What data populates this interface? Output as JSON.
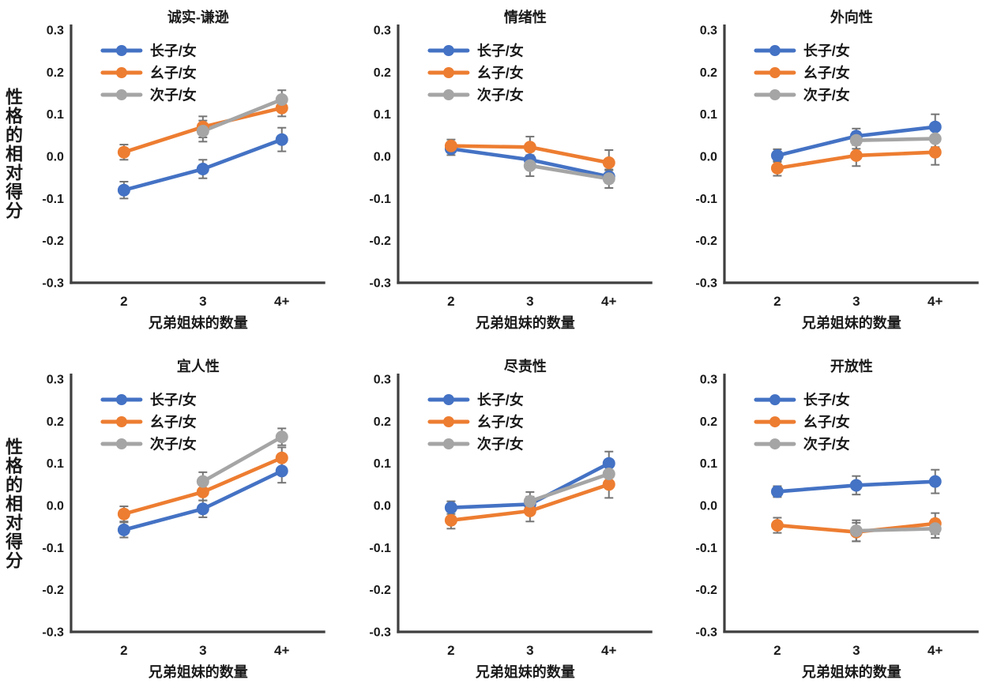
{
  "figure": {
    "background": "#ffffff",
    "y_axis_label": "性格的相对得分",
    "x_axis_label": "兄弟姐妹的数量",
    "y_ticks": [
      "0.3",
      "0.2",
      "0.1",
      "0.0",
      "-0.1",
      "-0.2",
      "-0.3"
    ],
    "ylim": [
      -0.3,
      0.3
    ],
    "legend": [
      "长子/女",
      "幺子/女",
      "次子/女"
    ],
    "colors": {
      "firstborn_blue": "#4472C4",
      "lastborn_orange": "#ED7D31",
      "middleborn_gray": "#A5A5A5",
      "error_bar": "#757575",
      "axis": "#3F3F3F",
      "text": "#1a1a1a"
    }
  },
  "chart_data": [
    {
      "type": "line",
      "title": "诚实-谦逊",
      "categories": [
        "2",
        "3",
        "4+"
      ],
      "xlabel": "兄弟姐妹的数量",
      "ylabel": "性格的相对得分",
      "ylim": [
        -0.3,
        0.3
      ],
      "grid": false,
      "legend_position": "top-left-inside",
      "series": [
        {
          "name": "长子/女",
          "color": "#4472C4",
          "values": [
            -0.08,
            -0.03,
            0.04
          ],
          "errors": [
            0.02,
            0.022,
            0.028
          ]
        },
        {
          "name": "幺子/女",
          "color": "#ED7D31",
          "values": [
            0.01,
            0.07,
            0.115
          ],
          "errors": [
            0.018,
            0.025,
            0.02
          ]
        },
        {
          "name": "次子/女",
          "color": "#A5A5A5",
          "values": [
            null,
            0.06,
            0.135
          ],
          "errors": [
            null,
            0.025,
            0.022
          ]
        }
      ]
    },
    {
      "type": "line",
      "title": "情绪性",
      "categories": [
        "2",
        "3",
        "4+"
      ],
      "xlabel": "兄弟姐妹的数量",
      "ylabel": "性格的相对得分",
      "ylim": [
        -0.3,
        0.3
      ],
      "grid": false,
      "legend_position": "top-left-inside",
      "series": [
        {
          "name": "长子/女",
          "color": "#4472C4",
          "values": [
            0.018,
            -0.008,
            -0.048
          ],
          "errors": [
            0.015,
            0.02,
            0.015
          ]
        },
        {
          "name": "幺子/女",
          "color": "#ED7D31",
          "values": [
            0.025,
            0.022,
            -0.015
          ],
          "errors": [
            0.015,
            0.025,
            0.03
          ]
        },
        {
          "name": "次子/女",
          "color": "#A5A5A5",
          "values": [
            null,
            -0.022,
            -0.053
          ],
          "errors": [
            null,
            0.025,
            0.022
          ]
        }
      ]
    },
    {
      "type": "line",
      "title": "外向性",
      "categories": [
        "2",
        "3",
        "4+"
      ],
      "xlabel": "兄弟姐妹的数量",
      "ylabel": "性格的相对得分",
      "ylim": [
        -0.3,
        0.3
      ],
      "grid": false,
      "legend_position": "top-left-inside",
      "series": [
        {
          "name": "长子/女",
          "color": "#4472C4",
          "values": [
            0.002,
            0.048,
            0.07
          ],
          "errors": [
            0.015,
            0.018,
            0.03
          ]
        },
        {
          "name": "幺子/女",
          "color": "#ED7D31",
          "values": [
            -0.028,
            0.002,
            0.01
          ],
          "errors": [
            0.018,
            0.025,
            0.03
          ]
        },
        {
          "name": "次子/女",
          "color": "#A5A5A5",
          "values": [
            null,
            0.038,
            0.042
          ],
          "errors": [
            null,
            0.02,
            0.02
          ]
        }
      ]
    },
    {
      "type": "line",
      "title": "宜人性",
      "categories": [
        "2",
        "3",
        "4+"
      ],
      "xlabel": "兄弟姐妹的数量",
      "ylabel": "性格的相对得分",
      "ylim": [
        -0.3,
        0.3
      ],
      "grid": false,
      "legend_position": "top-left-inside",
      "series": [
        {
          "name": "长子/女",
          "color": "#4472C4",
          "values": [
            -0.058,
            -0.008,
            0.082
          ],
          "errors": [
            0.018,
            0.02,
            0.028
          ]
        },
        {
          "name": "幺子/女",
          "color": "#ED7D31",
          "values": [
            -0.02,
            0.032,
            0.113
          ],
          "errors": [
            0.018,
            0.02,
            0.025
          ]
        },
        {
          "name": "次子/女",
          "color": "#A5A5A5",
          "values": [
            null,
            0.057,
            0.163
          ],
          "errors": [
            null,
            0.022,
            0.02
          ]
        }
      ]
    },
    {
      "type": "line",
      "title": "尽责性",
      "categories": [
        "2",
        "3",
        "4+"
      ],
      "xlabel": "兄弟姐妹的数量",
      "ylabel": "性格的相对得分",
      "ylim": [
        -0.3,
        0.3
      ],
      "grid": false,
      "legend_position": "top-left-inside",
      "series": [
        {
          "name": "长子/女",
          "color": "#4472C4",
          "values": [
            -0.005,
            0.003,
            0.1
          ],
          "errors": [
            0.015,
            0.018,
            0.028
          ]
        },
        {
          "name": "幺子/女",
          "color": "#ED7D31",
          "values": [
            -0.035,
            -0.013,
            0.05
          ],
          "errors": [
            0.02,
            0.025,
            0.032
          ]
        },
        {
          "name": "次子/女",
          "color": "#A5A5A5",
          "values": [
            null,
            0.01,
            0.075
          ],
          "errors": [
            null,
            0.022,
            0.02
          ]
        }
      ]
    },
    {
      "type": "line",
      "title": "开放性",
      "categories": [
        "2",
        "3",
        "4+"
      ],
      "xlabel": "兄弟姐妹的数量",
      "ylabel": "性格的相对得分",
      "ylim": [
        -0.3,
        0.3
      ],
      "grid": false,
      "legend_position": "top-left-inside",
      "series": [
        {
          "name": "长子/女",
          "color": "#4472C4",
          "values": [
            0.033,
            0.048,
            0.057
          ],
          "errors": [
            0.013,
            0.022,
            0.028
          ]
        },
        {
          "name": "幺子/女",
          "color": "#ED7D31",
          "values": [
            -0.047,
            -0.063,
            -0.043
          ],
          "errors": [
            0.018,
            0.022,
            0.025
          ]
        },
        {
          "name": "次子/女",
          "color": "#A5A5A5",
          "values": [
            null,
            -0.06,
            -0.055
          ],
          "errors": [
            null,
            0.025,
            0.022
          ]
        }
      ]
    }
  ]
}
